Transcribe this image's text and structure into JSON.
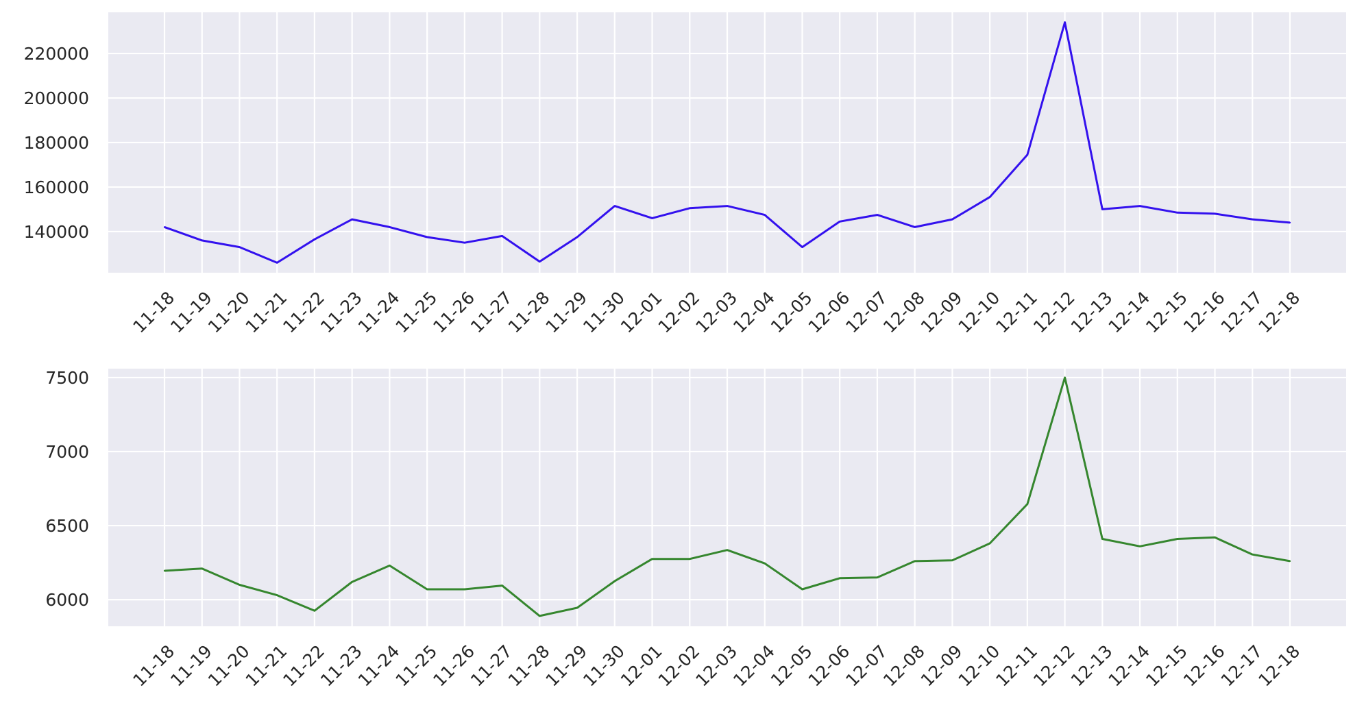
{
  "chart_data": [
    {
      "type": "line",
      "x": [
        "11-18",
        "11-19",
        "11-20",
        "11-21",
        "11-22",
        "11-23",
        "11-24",
        "11-25",
        "11-26",
        "11-27",
        "11-28",
        "11-29",
        "11-30",
        "12-01",
        "12-02",
        "12-03",
        "12-04",
        "12-05",
        "12-06",
        "12-07",
        "12-08",
        "12-09",
        "12-10",
        "12-11",
        "12-12",
        "12-13",
        "12-14",
        "12-15",
        "12-16",
        "12-17",
        "12-18"
      ],
      "series": [
        {
          "values": [
            142000,
            136000,
            133000,
            126000,
            136500,
            145500,
            142000,
            137500,
            135000,
            138000,
            126500,
            137500,
            151500,
            146000,
            150500,
            151500,
            147500,
            133000,
            144500,
            147500,
            142000,
            145500,
            155500,
            174500,
            234000,
            150000,
            151500,
            148500,
            148000,
            145500,
            144000
          ]
        }
      ],
      "yticks": [
        140000,
        160000,
        180000,
        200000,
        220000
      ],
      "ylim": [
        121500,
        238500
      ],
      "color": "#3311ee",
      "grid": true,
      "title": "",
      "xlabel": "",
      "ylabel": ""
    },
    {
      "type": "line",
      "x": [
        "11-18",
        "11-19",
        "11-20",
        "11-21",
        "11-22",
        "11-23",
        "11-24",
        "11-25",
        "11-26",
        "11-27",
        "11-28",
        "11-29",
        "11-30",
        "12-01",
        "12-02",
        "12-03",
        "12-04",
        "12-05",
        "12-06",
        "12-07",
        "12-08",
        "12-09",
        "12-10",
        "12-11",
        "12-12",
        "12-13",
        "12-14",
        "12-15",
        "12-16",
        "12-17",
        "12-18"
      ],
      "series": [
        {
          "values": [
            6195,
            6210,
            6100,
            6030,
            5925,
            6120,
            6230,
            6070,
            6070,
            6095,
            5890,
            5945,
            6125,
            6275,
            6275,
            6335,
            6245,
            6070,
            6145,
            6150,
            6260,
            6265,
            6380,
            6645,
            7500,
            6410,
            6360,
            6410,
            6420,
            6305,
            6260
          ]
        }
      ],
      "yticks": [
        6000,
        6500,
        7000,
        7500
      ],
      "ylim": [
        5820,
        7560
      ],
      "color": "#35862e",
      "grid": true,
      "title": "",
      "xlabel": "",
      "ylabel": ""
    }
  ]
}
